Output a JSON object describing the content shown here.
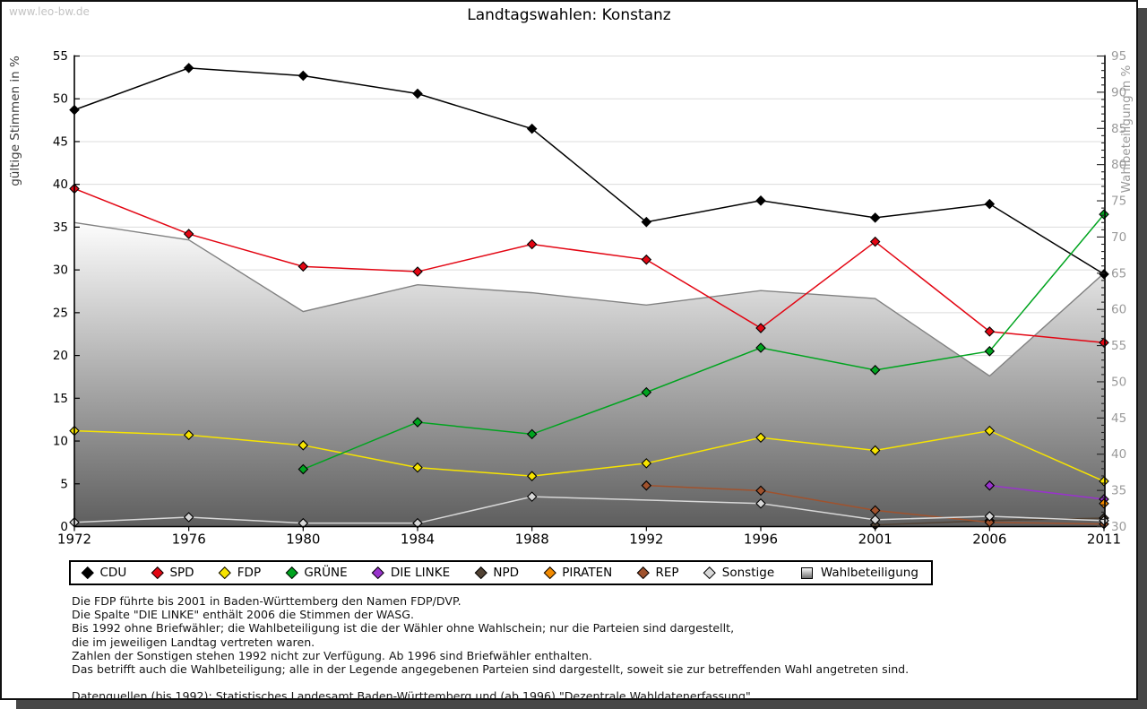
{
  "watermark": "www.leo-bw.de",
  "header": {
    "title": "Landtagswahlen: Konstanz"
  },
  "chart_data": {
    "type": "line",
    "title": "Landtagswahlen: Konstanz",
    "x": [
      1972,
      1976,
      1980,
      1984,
      1988,
      1992,
      1996,
      2001,
      2006,
      2011
    ],
    "left_axis": {
      "label": "gültige Stimmen in %",
      "min": 0,
      "max": 55,
      "tick_step": 5
    },
    "right_axis": {
      "label": "Wahlbeteiligung in %",
      "min": 30,
      "max": 95,
      "tick_step": 5,
      "minor_step": 1
    },
    "grid": "horizontal",
    "legend_position": "bottom",
    "series": [
      {
        "name": "CDU",
        "color": "#000000",
        "axis": "left",
        "values": [
          48.7,
          53.6,
          52.7,
          50.6,
          46.5,
          35.6,
          38.1,
          36.1,
          37.7,
          29.5
        ]
      },
      {
        "name": "SPD",
        "color": "#e30613",
        "axis": "left",
        "values": [
          39.5,
          34.2,
          30.4,
          29.8,
          33.0,
          31.2,
          23.2,
          33.3,
          22.8,
          21.5
        ]
      },
      {
        "name": "FDP",
        "color": "#f7e400",
        "axis": "left",
        "values": [
          11.2,
          10.7,
          9.5,
          6.9,
          5.9,
          7.4,
          10.4,
          8.9,
          11.2,
          5.3
        ]
      },
      {
        "name": "GRÜNE",
        "color": "#00a41f",
        "axis": "left",
        "values": [
          null,
          null,
          6.7,
          12.2,
          10.8,
          15.7,
          20.9,
          18.3,
          20.5,
          36.5
        ]
      },
      {
        "name": "DIE LINKE",
        "color": "#9933cc",
        "axis": "left",
        "values": [
          null,
          null,
          null,
          null,
          null,
          null,
          null,
          null,
          4.8,
          3.2
        ]
      },
      {
        "name": "NPD",
        "color": "#514234",
        "axis": "left",
        "values": [
          null,
          null,
          null,
          null,
          null,
          null,
          null,
          0.2,
          0.7,
          1.0
        ]
      },
      {
        "name": "PIRATEN",
        "color": "#f28a00",
        "axis": "left",
        "values": [
          null,
          null,
          null,
          null,
          null,
          null,
          null,
          null,
          null,
          2.7
        ]
      },
      {
        "name": "REP",
        "color": "#a0522d",
        "axis": "left",
        "values": [
          null,
          null,
          null,
          null,
          null,
          4.8,
          4.2,
          1.9,
          0.5,
          0.3
        ]
      },
      {
        "name": "Sonstige",
        "color": "#d8d8d8",
        "axis": "left",
        "values": [
          0.5,
          1.1,
          0.4,
          0.4,
          3.5,
          null,
          2.7,
          0.8,
          1.2,
          0.7
        ]
      },
      {
        "name": "Wahlbeteiligung",
        "color": "#828282",
        "axis": "right",
        "type": "area",
        "fill_top": "#ffffff",
        "fill_bottom": "#5e5e5e",
        "values": [
          72.0,
          69.6,
          59.7,
          63.4,
          62.3,
          60.6,
          62.6,
          61.5,
          50.8,
          65.0
        ]
      }
    ]
  },
  "footnotes": [
    "Die FDP führte bis 2001 in Baden-Württemberg den Namen FDP/DVP.",
    "Die Spalte \"DIE LINKE\" enthält 2006 die Stimmen der WASG.",
    "Bis 1992 ohne Briefwähler; die Wahlbeteiligung ist die der Wähler ohne Wahlschein; nur die Parteien sind dargestellt,",
    "die im jeweiligen Landtag vertreten waren.",
    "Zahlen der Sonstigen stehen 1992 nicht zur Verfügung. Ab 1996 sind Briefwähler enthalten.",
    "Das betrifft auch die Wahlbeteiligung; alle in der Legende angegebenen Parteien sind dargestellt, soweit sie zur betreffenden Wahl angetreten sind.",
    "",
    "Datenquellen (bis 1992): Statistisches Landesamt Baden-Württemberg und (ab 1996) \"Dezentrale Wahldatenerfassung\"."
  ]
}
